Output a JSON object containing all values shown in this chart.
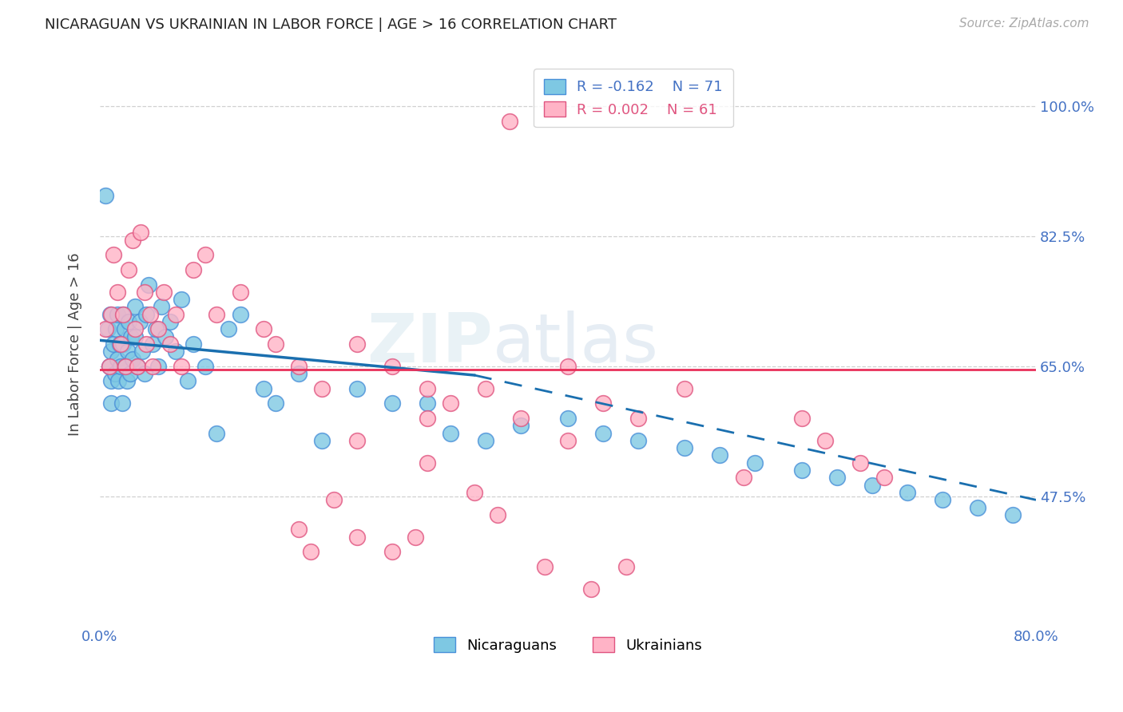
{
  "title": "NICARAGUAN VS UKRAINIAN IN LABOR FORCE | AGE > 16 CORRELATION CHART",
  "source": "Source: ZipAtlas.com",
  "ylabel": "In Labor Force | Age > 16",
  "xlim": [
    0.0,
    0.8
  ],
  "ylim": [
    0.3,
    1.06
  ],
  "xticks": [
    0.0,
    0.1,
    0.2,
    0.3,
    0.4,
    0.5,
    0.6,
    0.7,
    0.8
  ],
  "xticklabels": [
    "0.0%",
    "",
    "",
    "",
    "",
    "",
    "",
    "",
    "80.0%"
  ],
  "yticks": [
    0.475,
    0.65,
    0.825,
    1.0
  ],
  "yticklabels": [
    "47.5%",
    "65.0%",
    "82.5%",
    "100.0%"
  ],
  "nicaraguan_color": "#7ec8e3",
  "ukrainian_color": "#ffb3c6",
  "nicaraguan_edge": "#4a90d9",
  "ukrainian_edge": "#e05580",
  "trend_nicaraguan_color": "#1a6faf",
  "trend_ukrainian_color": "#e8305a",
  "background_color": "#ffffff",
  "grid_color": "#d0d0d0",
  "axis_label_color": "#4472c4",
  "tick_label_color": "#4472c4",
  "legend_R_nicaraguan": "R = -0.162",
  "legend_N_nicaraguan": "N = 71",
  "legend_R_ukrainian": "R = 0.002",
  "legend_N_ukrainian": "N = 61",
  "watermark": "ZIPatlas",
  "nicaraguan_x": [
    0.005,
    0.007,
    0.008,
    0.009,
    0.01,
    0.01,
    0.01,
    0.012,
    0.013,
    0.014,
    0.015,
    0.015,
    0.016,
    0.017,
    0.018,
    0.019,
    0.02,
    0.02,
    0.021,
    0.022,
    0.023,
    0.024,
    0.025,
    0.026,
    0.027,
    0.028,
    0.03,
    0.03,
    0.032,
    0.034,
    0.036,
    0.038,
    0.04,
    0.042,
    0.045,
    0.048,
    0.05,
    0.053,
    0.056,
    0.06,
    0.065,
    0.07,
    0.075,
    0.08,
    0.09,
    0.1,
    0.11,
    0.12,
    0.14,
    0.15,
    0.17,
    0.19,
    0.22,
    0.25,
    0.28,
    0.3,
    0.33,
    0.36,
    0.4,
    0.43,
    0.46,
    0.5,
    0.53,
    0.56,
    0.6,
    0.63,
    0.66,
    0.69,
    0.72,
    0.75,
    0.78
  ],
  "nicaraguan_y": [
    0.88,
    0.7,
    0.65,
    0.72,
    0.67,
    0.63,
    0.6,
    0.68,
    0.64,
    0.7,
    0.66,
    0.72,
    0.63,
    0.68,
    0.65,
    0.6,
    0.72,
    0.68,
    0.7,
    0.65,
    0.63,
    0.67,
    0.71,
    0.64,
    0.69,
    0.66,
    0.73,
    0.69,
    0.65,
    0.71,
    0.67,
    0.64,
    0.72,
    0.76,
    0.68,
    0.7,
    0.65,
    0.73,
    0.69,
    0.71,
    0.67,
    0.74,
    0.63,
    0.68,
    0.65,
    0.56,
    0.7,
    0.72,
    0.62,
    0.6,
    0.64,
    0.55,
    0.62,
    0.6,
    0.6,
    0.56,
    0.55,
    0.57,
    0.58,
    0.56,
    0.55,
    0.54,
    0.53,
    0.52,
    0.51,
    0.5,
    0.49,
    0.48,
    0.47,
    0.46,
    0.45
  ],
  "ukrainian_x": [
    0.005,
    0.008,
    0.01,
    0.012,
    0.015,
    0.018,
    0.02,
    0.022,
    0.025,
    0.028,
    0.03,
    0.032,
    0.035,
    0.038,
    0.04,
    0.043,
    0.045,
    0.05,
    0.055,
    0.06,
    0.065,
    0.07,
    0.08,
    0.09,
    0.1,
    0.12,
    0.14,
    0.15,
    0.17,
    0.19,
    0.22,
    0.25,
    0.28,
    0.3,
    0.33,
    0.36,
    0.4,
    0.4,
    0.43,
    0.46,
    0.5,
    0.55,
    0.6,
    0.62,
    0.65,
    0.67,
    0.22,
    0.28,
    0.32,
    0.34,
    0.27,
    0.25,
    0.2,
    0.17,
    0.38,
    0.42,
    0.45,
    0.28,
    0.22,
    0.18,
    0.35
  ],
  "ukrainian_y": [
    0.7,
    0.65,
    0.72,
    0.8,
    0.75,
    0.68,
    0.72,
    0.65,
    0.78,
    0.82,
    0.7,
    0.65,
    0.83,
    0.75,
    0.68,
    0.72,
    0.65,
    0.7,
    0.75,
    0.68,
    0.72,
    0.65,
    0.78,
    0.8,
    0.72,
    0.75,
    0.7,
    0.68,
    0.65,
    0.62,
    0.68,
    0.65,
    0.62,
    0.6,
    0.62,
    0.58,
    0.65,
    0.55,
    0.6,
    0.58,
    0.62,
    0.5,
    0.58,
    0.55,
    0.52,
    0.5,
    0.55,
    0.52,
    0.48,
    0.45,
    0.42,
    0.4,
    0.47,
    0.43,
    0.38,
    0.35,
    0.38,
    0.58,
    0.42,
    0.4,
    0.98
  ],
  "trend_nic_x0": 0.0,
  "trend_nic_y0": 0.685,
  "trend_nic_x_solid_end": 0.32,
  "trend_nic_y_solid_end": 0.638,
  "trend_nic_x_dashed_end": 0.8,
  "trend_nic_y_dashed_end": 0.47,
  "trend_ukr_y": 0.645
}
